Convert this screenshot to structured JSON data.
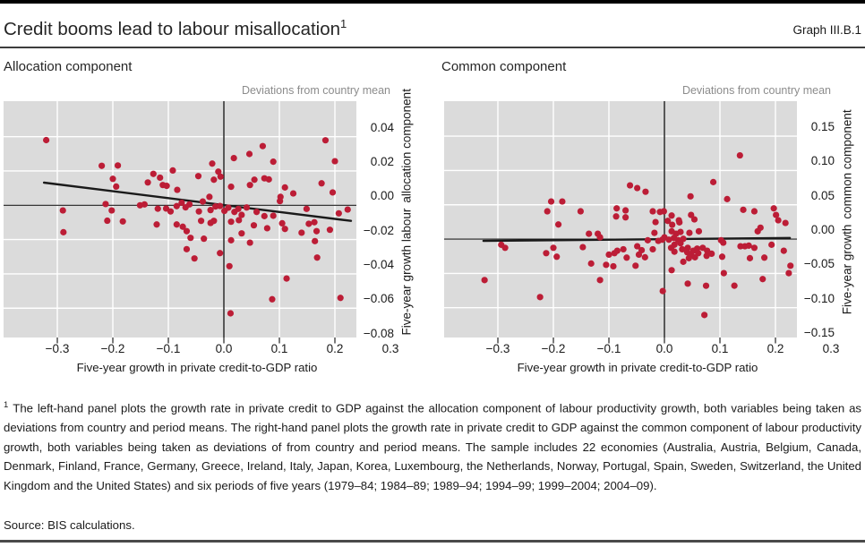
{
  "header": {
    "title": "Credit booms lead to labour misallocation",
    "title_superscript": "1",
    "graph_label": "Graph III.B.1"
  },
  "footnote": {
    "marker": "1",
    "text": "The left-hand panel plots the growth rate in private credit to GDP against the allocation component of labour productivity growth, both variables being taken as deviations from country and period means. The right-hand panel plots the growth rate in private credit to GDP against the common component of labour productivity growth, both variables being taken as deviations of from country and period means. The sample includes 22 economies (Australia, Austria, Belgium, Canada, Denmark, Finland, France, Germany, Greece, Ireland, Italy, Japan, Korea, Luxembourg, the Netherlands, Norway, Portugal, Spain, Sweden, Switzerland, the United Kingdom and the United States) and six periods of five years (1979–84; 1984–89; 1989–94; 1994–99; 1999–2004; 2004–09)."
  },
  "source": "Source: BIS calculations.",
  "colors": {
    "dot": "#bc1d36",
    "plot_bg": "#dbdbdb",
    "grid": "#ffffff",
    "line": "#1a1a1a",
    "tick": "#333333",
    "muted_text": "#8c8c8c"
  },
  "chart_data": [
    {
      "type": "scatter",
      "title": "Allocation component",
      "unit_label": "Deviations from country mean",
      "xlabel": "Five-year growth in private credit-to-GDP ratio",
      "ylabel_line1": "Five-year growth labour",
      "ylabel_line2": "allocation component",
      "xlim": [
        -0.3968,
        0.2387
      ],
      "ylim": [
        -0.0771,
        0.0607
      ],
      "xticks": [
        -0.3,
        -0.2,
        -0.1,
        0.0,
        0.1,
        0.2,
        0.3
      ],
      "xtick_labels": [
        "−0.3",
        "−0.2",
        "−0.1",
        "0.0",
        "0.1",
        "0.2",
        "0.3"
      ],
      "yticks": [
        0.04,
        0.02,
        0.0,
        -0.02,
        -0.04,
        -0.06,
        -0.08
      ],
      "ytick_labels": [
        "0.04",
        "0.02",
        "0.00",
        "−0.02",
        "−0.04",
        "−0.06",
        "−0.08"
      ],
      "zero_lines": true,
      "trend": [
        [
          -0.324,
          0.0132
        ],
        [
          0.229,
          -0.0091
        ]
      ],
      "points": [
        [
          -0.32,
          0.038
        ],
        [
          -0.29,
          -0.003
        ],
        [
          -0.289,
          -0.0157
        ],
        [
          -0.22,
          0.023
        ],
        [
          -0.213,
          0.0007
        ],
        [
          -0.21,
          -0.009
        ],
        [
          -0.202,
          -0.003
        ],
        [
          -0.2,
          0.0154
        ],
        [
          -0.194,
          0.0109
        ],
        [
          -0.191,
          0.0232
        ],
        [
          -0.182,
          -0.0094
        ],
        [
          -0.151,
          0.0
        ],
        [
          -0.143,
          0.0005
        ],
        [
          -0.137,
          0.0133
        ],
        [
          -0.127,
          0.0183
        ],
        [
          -0.121,
          -0.0112
        ],
        [
          -0.119,
          -0.002
        ],
        [
          -0.115,
          0.0161
        ],
        [
          -0.11,
          0.0118
        ],
        [
          -0.104,
          -0.0019
        ],
        [
          -0.103,
          0.0113
        ],
        [
          -0.096,
          -0.0036
        ],
        [
          -0.092,
          0.0203
        ],
        [
          -0.085,
          -0.0112
        ],
        [
          -0.085,
          -0.0005
        ],
        [
          -0.084,
          0.009
        ],
        [
          -0.076,
          0.0015
        ],
        [
          -0.074,
          -0.0125
        ],
        [
          -0.069,
          -0.0012
        ],
        [
          -0.067,
          -0.0151
        ],
        [
          -0.067,
          -0.0256
        ],
        [
          -0.062,
          0.0005
        ],
        [
          -0.06,
          -0.019
        ],
        [
          -0.053,
          -0.031
        ],
        [
          -0.046,
          0.017
        ],
        [
          -0.045,
          -0.0036
        ],
        [
          -0.041,
          -0.0091
        ],
        [
          -0.038,
          0.0022
        ],
        [
          -0.036,
          -0.0195
        ],
        [
          -0.026,
          0.0049
        ],
        [
          -0.024,
          -0.0028
        ],
        [
          -0.024,
          -0.0103
        ],
        [
          -0.021,
          0.0243
        ],
        [
          -0.018,
          0.0149
        ],
        [
          -0.018,
          -0.0091
        ],
        [
          -0.015,
          -0.0007
        ],
        [
          -0.01,
          0.0196
        ],
        [
          -0.007,
          -0.0004
        ],
        [
          -0.007,
          -0.0279
        ],
        [
          -0.006,
          0.0167
        ],
        [
          0.001,
          -0.0033
        ],
        [
          0.008,
          -0.0014
        ],
        [
          0.01,
          -0.0355
        ],
        [
          0.012,
          -0.063
        ],
        [
          0.013,
          0.0108
        ],
        [
          0.013,
          -0.0096
        ],
        [
          0.013,
          -0.0204
        ],
        [
          0.018,
          0.0275
        ],
        [
          0.019,
          -0.0039
        ],
        [
          0.026,
          -0.0021
        ],
        [
          0.027,
          -0.0087
        ],
        [
          0.032,
          -0.0056
        ],
        [
          0.032,
          -0.0164
        ],
        [
          0.041,
          -0.0013
        ],
        [
          0.046,
          0.0299
        ],
        [
          0.047,
          0.0118
        ],
        [
          0.047,
          -0.0218
        ],
        [
          0.054,
          -0.0117
        ],
        [
          0.055,
          0.0149
        ],
        [
          0.059,
          -0.0039
        ],
        [
          0.07,
          0.0345
        ],
        [
          0.073,
          0.0157
        ],
        [
          0.073,
          -0.0063
        ],
        [
          0.078,
          -0.0134
        ],
        [
          0.081,
          0.0151
        ],
        [
          0.087,
          -0.0548
        ],
        [
          0.089,
          0.0254
        ],
        [
          0.089,
          -0.0061
        ],
        [
          0.101,
          0.0024
        ],
        [
          0.102,
          0.0049
        ],
        [
          0.105,
          -0.0105
        ],
        [
          0.11,
          0.0104
        ],
        [
          0.11,
          -0.0138
        ],
        [
          0.113,
          -0.0427
        ],
        [
          0.125,
          0.0069
        ],
        [
          0.14,
          -0.016
        ],
        [
          0.149,
          -0.0021
        ],
        [
          0.153,
          -0.0108
        ],
        [
          0.163,
          -0.0099
        ],
        [
          0.164,
          -0.0209
        ],
        [
          0.167,
          -0.0151
        ],
        [
          0.168,
          -0.0305
        ],
        [
          0.176,
          0.0128
        ],
        [
          0.183,
          0.0379
        ],
        [
          0.191,
          -0.0143
        ],
        [
          0.196,
          0.0075
        ],
        [
          0.2,
          0.0257
        ],
        [
          0.207,
          -0.0047
        ],
        [
          0.21,
          -0.054
        ],
        [
          0.223,
          -0.0025
        ]
      ]
    },
    {
      "type": "scatter",
      "title": "Common component",
      "unit_label": "Deviations from country mean",
      "xlabel": "Five-year growth in private credit-to-GDP ratio",
      "ylabel_line1": "Five-year growth",
      "ylabel_line2": "common component",
      "xlim": [
        -0.3968,
        0.2387
      ],
      "ylim": [
        -0.1434,
        0.201
      ],
      "xticks": [
        -0.3,
        -0.2,
        -0.1,
        0.0,
        0.1,
        0.2,
        0.3
      ],
      "xtick_labels": [
        "−0.3",
        "−0.2",
        "−0.1",
        "0.0",
        "0.1",
        "0.2",
        "0.3"
      ],
      "yticks": [
        0.15,
        0.1,
        0.05,
        0.0,
        -0.05,
        -0.1,
        -0.15
      ],
      "ytick_labels": [
        "0.15",
        "0.10",
        "0.05",
        "0.00",
        "−0.05",
        "−0.10",
        "−0.15"
      ],
      "zero_lines": true,
      "trend": [
        [
          -0.326,
          -0.0026
        ],
        [
          0.226,
          0.0017
        ]
      ],
      "points": [
        [
          -0.324,
          -0.0597
        ],
        [
          -0.294,
          -0.0082
        ],
        [
          -0.287,
          -0.0127
        ],
        [
          -0.224,
          -0.0845
        ],
        [
          -0.213,
          -0.0205
        ],
        [
          -0.211,
          0.0405
        ],
        [
          -0.204,
          0.0548
        ],
        [
          -0.2,
          -0.0127
        ],
        [
          -0.194,
          -0.0257
        ],
        [
          -0.191,
          0.0213
        ],
        [
          -0.184,
          0.0548
        ],
        [
          -0.151,
          0.0405
        ],
        [
          -0.147,
          -0.0117
        ],
        [
          -0.136,
          0.0078
        ],
        [
          -0.132,
          -0.0356
        ],
        [
          -0.12,
          0.0078
        ],
        [
          -0.116,
          0.0026
        ],
        [
          -0.116,
          -0.0597
        ],
        [
          -0.105,
          -0.0375
        ],
        [
          -0.1,
          -0.0226
        ],
        [
          -0.092,
          -0.0396
        ],
        [
          -0.09,
          -0.0205
        ],
        [
          -0.087,
          0.033
        ],
        [
          -0.086,
          0.0448
        ],
        [
          -0.085,
          -0.017
        ],
        [
          -0.074,
          -0.0148
        ],
        [
          -0.07,
          0.0418
        ],
        [
          -0.07,
          0.0317
        ],
        [
          -0.068,
          -0.027
        ],
        [
          -0.062,
          0.0783
        ],
        [
          -0.052,
          -0.0388
        ],
        [
          -0.049,
          0.0744
        ],
        [
          -0.049,
          -0.0104
        ],
        [
          -0.046,
          -0.0226
        ],
        [
          -0.041,
          -0.0161
        ],
        [
          -0.035,
          -0.0265
        ],
        [
          -0.034,
          0.069
        ],
        [
          -0.03,
          -0.0017
        ],
        [
          -0.021,
          0.0405
        ],
        [
          -0.021,
          -0.0148
        ],
        [
          -0.018,
          0.0091
        ],
        [
          -0.016,
          0.0248
        ],
        [
          -0.011,
          -0.0026
        ],
        [
          -0.008,
          0.0396
        ],
        [
          -0.004,
          -0.0009
        ],
        [
          -0.003,
          -0.0757
        ],
        [
          -0.001,
          0.0405
        ],
        [
          0.0,
          0.0026
        ],
        [
          0.006,
          0.0265
        ],
        [
          0.008,
          -0.0009
        ],
        [
          0.012,
          -0.0127
        ],
        [
          0.013,
          0.0343
        ],
        [
          0.013,
          0.0114
        ],
        [
          0.013,
          -0.0453
        ],
        [
          0.014,
          0.0209
        ],
        [
          0.017,
          0.0017
        ],
        [
          0.018,
          -0.0082
        ],
        [
          0.018,
          -0.0183
        ],
        [
          0.021,
          0.0078
        ],
        [
          0.025,
          -0.0017
        ],
        [
          0.026,
          0.0274
        ],
        [
          0.027,
          0.0244
        ],
        [
          0.029,
          0.0104
        ],
        [
          0.029,
          -0.0061
        ],
        [
          0.032,
          -0.0148
        ],
        [
          0.034,
          0.0004
        ],
        [
          0.034,
          -0.033
        ],
        [
          0.042,
          -0.0127
        ],
        [
          0.042,
          -0.0649
        ],
        [
          0.041,
          -0.0192
        ],
        [
          0.044,
          -0.0278
        ],
        [
          0.045,
          0.0091
        ],
        [
          0.047,
          0.0623
        ],
        [
          0.048,
          0.0352
        ],
        [
          0.048,
          -0.0235
        ],
        [
          0.052,
          -0.017
        ],
        [
          0.054,
          0.0287
        ],
        [
          0.055,
          -0.0265
        ],
        [
          0.059,
          -0.0139
        ],
        [
          0.061,
          -0.0205
        ],
        [
          0.062,
          0.0114
        ],
        [
          0.069,
          -0.0127
        ],
        [
          0.072,
          -0.1106
        ],
        [
          0.075,
          -0.068
        ],
        [
          0.076,
          -0.0244
        ],
        [
          0.077,
          -0.017
        ],
        [
          0.085,
          -0.0213
        ],
        [
          0.088,
          0.0831
        ],
        [
          0.102,
          -0.0017
        ],
        [
          0.104,
          -0.0257
        ],
        [
          0.106,
          -0.0052
        ],
        [
          0.107,
          -0.0496
        ],
        [
          0.113,
          0.0583
        ],
        [
          0.126,
          -0.0679
        ],
        [
          0.136,
          0.122
        ],
        [
          0.137,
          -0.0104
        ],
        [
          0.142,
          0.0427
        ],
        [
          0.145,
          -0.0104
        ],
        [
          0.152,
          -0.0095
        ],
        [
          0.154,
          -0.0278
        ],
        [
          0.162,
          0.0405
        ],
        [
          0.162,
          -0.0127
        ],
        [
          0.168,
          0.0114
        ],
        [
          0.173,
          0.0166
        ],
        [
          0.177,
          -0.0583
        ],
        [
          0.18,
          -0.027
        ],
        [
          0.193,
          -0.0082
        ],
        [
          0.197,
          0.0448
        ],
        [
          0.201,
          0.0352
        ],
        [
          0.205,
          0.0274
        ],
        [
          0.215,
          -0.017
        ],
        [
          0.218,
          0.0235
        ],
        [
          0.224,
          -0.0496
        ],
        [
          0.227,
          -0.0388
        ]
      ]
    }
  ]
}
